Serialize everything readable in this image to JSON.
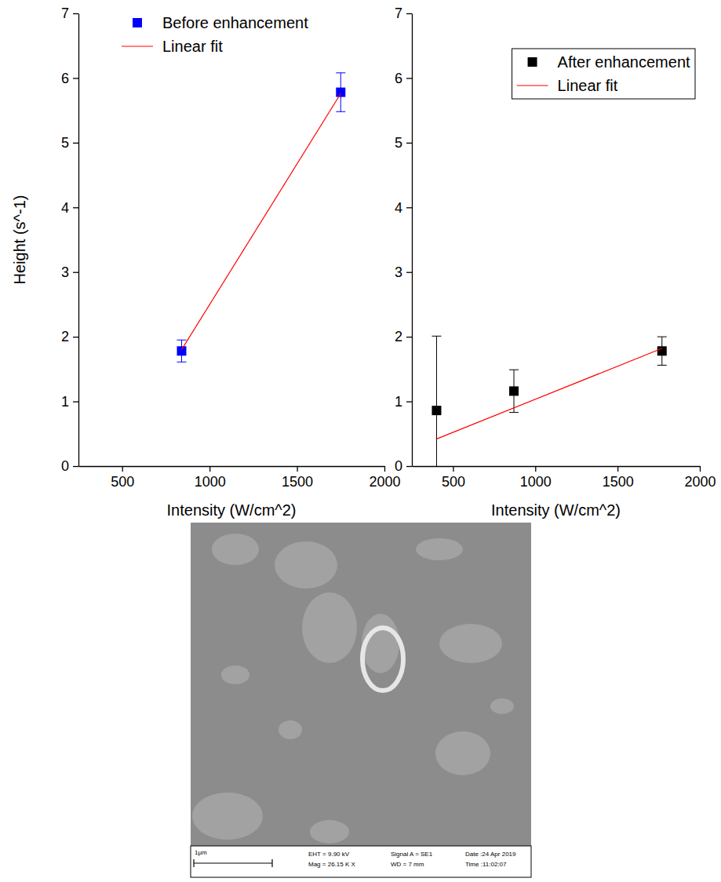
{
  "chart_data": [
    {
      "type": "scatter",
      "ylabel": "Height (s^-1)",
      "xlabel": "Intensity (W/cm^2)",
      "xlim": [
        250,
        2000
      ],
      "xticks": [
        500,
        1000,
        1500,
        2000
      ],
      "ylim": [
        0,
        7
      ],
      "yticks": [
        0,
        1,
        2,
        3,
        4,
        5,
        6,
        7
      ],
      "legend": "upper left",
      "series": [
        {
          "name": "Before enhancement",
          "type": "scatter",
          "color": "#0000ff",
          "marker": "square",
          "x": [
            840,
            1750
          ],
          "values": [
            1.78,
            5.78
          ],
          "errors": [
            0.17,
            0.3
          ]
        },
        {
          "name": "Linear fit",
          "type": "line",
          "color": "#ff0000",
          "line_style": "solid",
          "x": [
            840,
            1750
          ],
          "values": [
            1.8,
            5.76
          ]
        }
      ]
    },
    {
      "type": "scatter",
      "xlabel": "Intensity (W/cm^2)",
      "xlim": [
        250,
        2000
      ],
      "xticks": [
        500,
        1000,
        1500,
        2000
      ],
      "ylim": [
        0,
        7
      ],
      "yticks": [
        0,
        1,
        2,
        3,
        4,
        5,
        6,
        7
      ],
      "legend": "upper right",
      "series": [
        {
          "name": "After enhancement",
          "type": "scatter",
          "color": "#000000",
          "marker": "square",
          "x": [
            400,
            870,
            1770
          ],
          "values": [
            0.86,
            1.16,
            1.78
          ],
          "errors": [
            1.15,
            0.33,
            0.22
          ]
        },
        {
          "name": "Linear fit",
          "type": "line",
          "color": "#ff0000",
          "line_style": "solid",
          "x": [
            400,
            1770
          ],
          "values": [
            0.42,
            1.82
          ]
        }
      ]
    }
  ],
  "image": {
    "scale_bar": "1μm",
    "info": [
      [
        "EHT = 9.90 kV",
        "Mag = 26.15 K X"
      ],
      [
        "Signal A = SE1",
        "WD =  7 mm"
      ],
      [
        "Date :24 Apr 2019",
        "Time :11:02:07"
      ]
    ]
  }
}
